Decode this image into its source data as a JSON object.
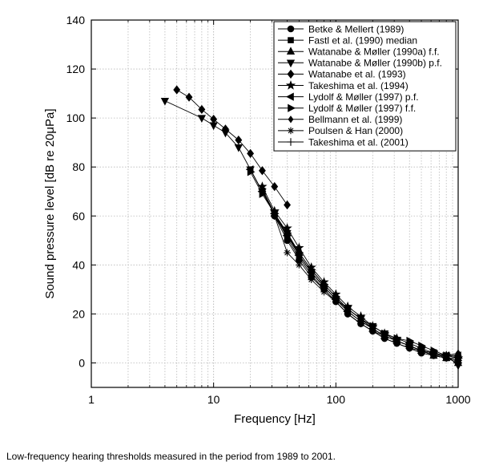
{
  "chart_data": {
    "type": "line",
    "xlabel": "Frequency [Hz]",
    "ylabel": "Sound pressure level [dB re 20μPa]",
    "xscale": "log",
    "xlim": [
      1,
      1000
    ],
    "ylim": [
      -10,
      140
    ],
    "xticks": [
      {
        "v": 1,
        "label": "1"
      },
      {
        "v": 10,
        "label": "10"
      },
      {
        "v": 100,
        "label": "100"
      },
      {
        "v": 1000,
        "label": "1000"
      }
    ],
    "yticks": [
      0,
      20,
      40,
      60,
      80,
      100,
      120,
      140
    ],
    "grid": true,
    "legend": "top-right",
    "series": [
      {
        "name": "Betke & Mellert (1989)",
        "marker": "circle",
        "x": [
          31.5,
          40,
          50,
          63,
          80,
          100,
          125,
          160,
          200,
          250,
          315,
          400,
          500,
          630,
          800,
          1000
        ],
        "y": [
          60,
          50,
          42,
          35,
          30,
          25,
          20,
          16,
          13,
          10,
          8,
          6,
          4,
          3,
          2,
          2
        ]
      },
      {
        "name": "Fastl et al. (1990) median",
        "marker": "square",
        "x": [
          31.5,
          40,
          50,
          63,
          80,
          100,
          125,
          160,
          200,
          250,
          315,
          400,
          500,
          630,
          800,
          1000
        ],
        "y": [
          61,
          52,
          44,
          37,
          31,
          26,
          21,
          17,
          14,
          11,
          9,
          7,
          5,
          3,
          2,
          1
        ]
      },
      {
        "name": "Watanabe & Møller (1990a) f.f.",
        "marker": "triangle-up",
        "x": [
          25,
          31.5,
          40,
          50,
          63,
          80,
          100,
          125,
          160,
          200,
          250,
          315,
          400,
          500,
          630,
          800,
          1000
        ],
        "y": [
          71,
          61,
          53,
          45,
          38,
          32,
          27,
          22,
          18,
          14,
          11,
          9,
          7,
          5,
          3,
          2,
          0
        ]
      },
      {
        "name": "Watanabe & Møller (1990b) p.f.",
        "marker": "triangle-down",
        "x": [
          4,
          8,
          10,
          12.5,
          16,
          20,
          25,
          31.5,
          40,
          50,
          63,
          80,
          100,
          125,
          160,
          200,
          250,
          315,
          400,
          500,
          630,
          800,
          1000
        ],
        "y": [
          107,
          100,
          97,
          94,
          88,
          79,
          70,
          61,
          53,
          44,
          37,
          31,
          26,
          22,
          18,
          15,
          12,
          9,
          7,
          5,
          4,
          3,
          -1
        ]
      },
      {
        "name": "Watanabe et al. (1993)",
        "marker": "diamond",
        "x": [
          5,
          6.3,
          8,
          10,
          12.5,
          16,
          20,
          25,
          31.5,
          40
        ],
        "y": [
          111.5,
          108.5,
          103.5,
          99.5,
          95.5,
          91,
          85.5,
          78.5,
          72,
          64.5
        ]
      },
      {
        "name": "Takeshima et al. (1994)",
        "marker": "star",
        "x": [
          25,
          31.5,
          40,
          50,
          63,
          80,
          100,
          125,
          160,
          200,
          250,
          315,
          400,
          500,
          630,
          800,
          1000
        ],
        "y": [
          72,
          62,
          55,
          47,
          39,
          33,
          28,
          23,
          19,
          15,
          12,
          10,
          8,
          6,
          4,
          3,
          2
        ]
      },
      {
        "name": "Lydolf & Møller (1997) p.f.",
        "marker": "triangle-left",
        "x": [
          20,
          25,
          31.5,
          40,
          50,
          63,
          80,
          100,
          125,
          160,
          200,
          250,
          315,
          400,
          500,
          630,
          800,
          1000
        ],
        "y": [
          79,
          70,
          61,
          52,
          44,
          37,
          31,
          26,
          21,
          17,
          14,
          11,
          9,
          7,
          5,
          4,
          3,
          3
        ]
      },
      {
        "name": "Lydolf & Møller (1997) f.f.",
        "marker": "triangle-right",
        "x": [
          20,
          25,
          31.5,
          40,
          50,
          63,
          80,
          100,
          125,
          160,
          200,
          250,
          315,
          400,
          500,
          630,
          800,
          1000
        ],
        "y": [
          78,
          69,
          61,
          53,
          45,
          38,
          32,
          27,
          22,
          18,
          15,
          12,
          10,
          9,
          7,
          5,
          3,
          2
        ]
      },
      {
        "name": "Bellmann et al. (1999)",
        "marker": "diamond-small",
        "x": [
          25,
          31.5,
          40,
          50,
          63,
          80,
          100,
          125,
          160,
          200,
          250,
          315,
          400,
          500,
          630,
          800,
          1000
        ],
        "y": [
          70,
          61,
          51,
          43,
          36,
          30,
          25,
          20,
          16,
          13,
          10,
          8,
          6,
          5,
          3,
          3,
          4
        ]
      },
      {
        "name": "Poulsen & Han (2000)",
        "marker": "asterisk",
        "x": [
          31.5,
          40,
          50,
          63,
          80,
          100,
          125,
          160,
          200,
          250,
          315,
          400,
          500,
          630,
          800,
          1000
        ],
        "y": [
          60,
          45,
          40,
          34,
          29,
          25,
          20,
          16,
          13,
          11,
          9,
          7,
          5,
          4,
          3,
          3
        ]
      },
      {
        "name": "Takeshima et al. (2001)",
        "marker": "plus",
        "x": [
          25,
          31.5,
          40,
          50,
          63,
          80,
          100,
          125,
          160,
          200,
          250,
          315,
          400,
          500,
          630,
          800,
          1000
        ],
        "y": [
          71,
          60,
          52,
          44,
          37,
          31,
          26,
          21,
          17,
          14,
          11,
          9,
          7,
          5,
          4,
          2,
          1
        ]
      }
    ]
  },
  "caption": "Low-frequency hearing thresholds measured in the period from 1989 to 2001."
}
